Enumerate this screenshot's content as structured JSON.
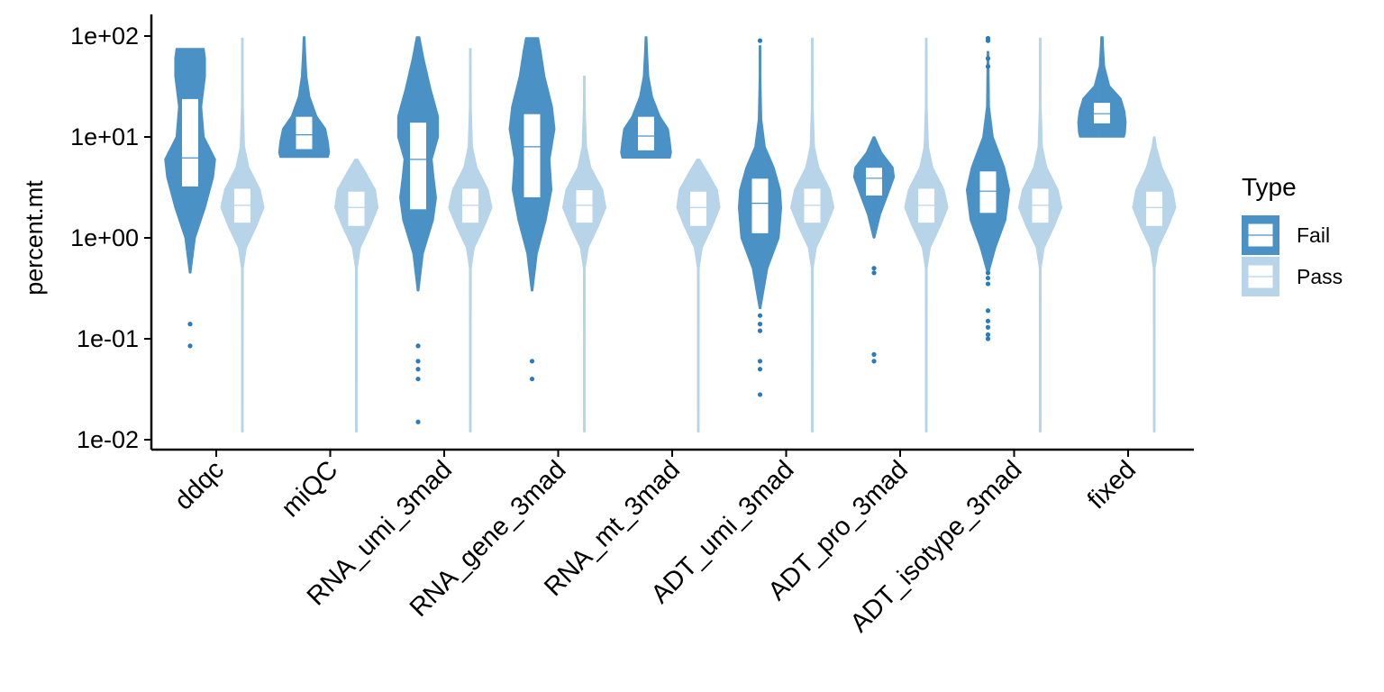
{
  "chart_data": {
    "type": "violin",
    "ylabel": "percent.mt",
    "y_scale": "log10",
    "ylim": [
      0.01,
      100
    ],
    "y_ticks": [
      {
        "value": 0.01,
        "label": "1e-02"
      },
      {
        "value": 0.1,
        "label": "1e-01"
      },
      {
        "value": 1,
        "label": "1e+00"
      },
      {
        "value": 10,
        "label": "1e+01"
      },
      {
        "value": 100,
        "label": "1e+02"
      }
    ],
    "categories": [
      "ddqc",
      "miQC",
      "RNA_umi_3mad",
      "RNA_gene_3mad",
      "RNA_mt_3mad",
      "ADT_umi_3mad",
      "ADT_pro_3mad",
      "ADT_isotype_3mad",
      "fixed"
    ],
    "legend": {
      "title": "Type",
      "position": "right",
      "entries": [
        {
          "label": "Fail",
          "color": "#4a91c6"
        },
        {
          "label": "Pass",
          "color": "#b7d4e9"
        }
      ]
    },
    "colors": {
      "fail": "#4a91c6",
      "pass": "#b7d4e9",
      "fail_point": "#2b7bba",
      "pass_point": "#a6cbe3"
    },
    "grid": false,
    "series": [
      {
        "name": "Fail",
        "groups": [
          {
            "category": "ddqc",
            "min": 0.45,
            "max": 75,
            "q1": 3.2,
            "median": 6.2,
            "q3": 24,
            "profile": [
              [
                0.45,
                0.02
              ],
              [
                1,
                0.2
              ],
              [
                2,
                0.6
              ],
              [
                4,
                0.92
              ],
              [
                6,
                1.0
              ],
              [
                10,
                0.55
              ],
              [
                20,
                0.45
              ],
              [
                40,
                0.6
              ],
              [
                60,
                0.6
              ],
              [
                75,
                0.55
              ]
            ],
            "outliers": [
              0.14,
              0.085
            ]
          },
          {
            "category": "miQC",
            "min": 6.3,
            "max": 98,
            "q1": 7.5,
            "median": 10.5,
            "q3": 16,
            "profile": [
              [
                6.3,
                0.95
              ],
              [
                7,
                1.0
              ],
              [
                9,
                0.95
              ],
              [
                12,
                0.85
              ],
              [
                16,
                0.5
              ],
              [
                25,
                0.22
              ],
              [
                40,
                0.1
              ],
              [
                70,
                0.05
              ],
              [
                98,
                0.03
              ]
            ],
            "outliers": []
          },
          {
            "category": "RNA_umi_3mad",
            "min": 0.3,
            "max": 98,
            "q1": 1.9,
            "median": 6,
            "q3": 14,
            "profile": [
              [
                0.3,
                0.02
              ],
              [
                0.7,
                0.2
              ],
              [
                1.5,
                0.6
              ],
              [
                2.5,
                0.72
              ],
              [
                4,
                0.62
              ],
              [
                6,
                0.55
              ],
              [
                10,
                0.8
              ],
              [
                16,
                0.8
              ],
              [
                30,
                0.5
              ],
              [
                60,
                0.22
              ],
              [
                98,
                0.06
              ]
            ],
            "outliers": [
              0.085,
              0.06,
              0.05,
              0.04,
              0.015
            ]
          },
          {
            "category": "RNA_gene_3mad",
            "min": 0.3,
            "max": 96,
            "q1": 2.5,
            "median": 8,
            "q3": 17,
            "profile": [
              [
                0.3,
                0.02
              ],
              [
                0.7,
                0.2
              ],
              [
                1.5,
                0.55
              ],
              [
                3,
                0.78
              ],
              [
                6,
                0.7
              ],
              [
                12,
                0.9
              ],
              [
                20,
                0.8
              ],
              [
                40,
                0.5
              ],
              [
                70,
                0.35
              ],
              [
                96,
                0.25
              ]
            ],
            "outliers": [
              0.06,
              0.04
            ]
          },
          {
            "category": "RNA_mt_3mad",
            "min": 6.2,
            "max": 98,
            "q1": 7.3,
            "median": 10.2,
            "q3": 16,
            "profile": [
              [
                6.2,
                0.95
              ],
              [
                7,
                1.0
              ],
              [
                9,
                0.95
              ],
              [
                12,
                0.88
              ],
              [
                16,
                0.55
              ],
              [
                25,
                0.25
              ],
              [
                40,
                0.1
              ],
              [
                70,
                0.05
              ],
              [
                98,
                0.03
              ]
            ],
            "outliers": []
          },
          {
            "category": "ADT_umi_3mad",
            "min": 0.2,
            "max": 80,
            "q1": 1.1,
            "median": 2.2,
            "q3": 3.9,
            "profile": [
              [
                0.2,
                0.02
              ],
              [
                0.5,
                0.3
              ],
              [
                1,
                0.75
              ],
              [
                2,
                0.85
              ],
              [
                3,
                0.8
              ],
              [
                5,
                0.55
              ],
              [
                8,
                0.2
              ],
              [
                15,
                0.06
              ],
              [
                40,
                0.02
              ],
              [
                80,
                0.01
              ]
            ],
            "outliers": [
              0.17,
              0.14,
              0.12,
              0.06,
              0.05,
              0.028,
              90
            ]
          },
          {
            "category": "ADT_pro_3mad",
            "min": 1.0,
            "max": 10,
            "q1": 2.6,
            "median": 3.9,
            "q3": 5,
            "profile": [
              [
                1.0,
                0.02
              ],
              [
                1.7,
                0.25
              ],
              [
                2.7,
                0.55
              ],
              [
                4,
                0.8
              ],
              [
                5,
                0.75
              ],
              [
                7,
                0.3
              ],
              [
                10,
                0.03
              ]
            ],
            "outliers": [
              0.5,
              0.45,
              0.07,
              0.06
            ]
          },
          {
            "category": "ADT_isotype_3mad",
            "min": 0.45,
            "max": 70,
            "q1": 1.75,
            "median": 2.9,
            "q3": 4.6,
            "profile": [
              [
                0.45,
                0.02
              ],
              [
                0.8,
                0.3
              ],
              [
                1.5,
                0.7
              ],
              [
                3,
                0.85
              ],
              [
                5,
                0.65
              ],
              [
                10,
                0.2
              ],
              [
                20,
                0.05
              ],
              [
                70,
                0.01
              ]
            ],
            "outliers": [
              0.45,
              0.4,
              0.35,
              0.19,
              0.15,
              0.13,
              0.11,
              0.1,
              95,
              90,
              60,
              50
            ]
          },
          {
            "category": "fixed",
            "min": 10,
            "max": 98,
            "q1": 13.5,
            "median": 17,
            "q3": 22,
            "profile": [
              [
                10,
                0.88
              ],
              [
                11,
                0.92
              ],
              [
                14,
                0.95
              ],
              [
                18,
                0.9
              ],
              [
                24,
                0.75
              ],
              [
                32,
                0.3
              ],
              [
                50,
                0.1
              ],
              [
                80,
                0.05
              ],
              [
                98,
                0.04
              ]
            ],
            "outliers": []
          }
        ]
      },
      {
        "name": "Pass",
        "groups": [
          {
            "category": "ddqc",
            "min": 0.012,
            "max": 95,
            "q1": 1.4,
            "median": 2.1,
            "q3": 3.1,
            "profile": [
              [
                0.012,
                0.02
              ],
              [
                0.5,
                0.03
              ],
              [
                0.8,
                0.15
              ],
              [
                1.3,
                0.55
              ],
              [
                2,
                0.85
              ],
              [
                3,
                0.7
              ],
              [
                5,
                0.25
              ],
              [
                8,
                0.08
              ],
              [
                20,
                0.03
              ],
              [
                95,
                0.02
              ]
            ],
            "outliers": []
          },
          {
            "category": "miQC",
            "min": 0.012,
            "max": 6,
            "q1": 1.3,
            "median": 2.0,
            "q3": 2.9,
            "profile": [
              [
                0.012,
                0.02
              ],
              [
                0.5,
                0.03
              ],
              [
                0.8,
                0.15
              ],
              [
                1.3,
                0.55
              ],
              [
                2,
                0.85
              ],
              [
                3,
                0.75
              ],
              [
                4.5,
                0.35
              ],
              [
                6,
                0.05
              ]
            ],
            "outliers": []
          },
          {
            "category": "RNA_umi_3mad",
            "min": 0.012,
            "max": 75,
            "q1": 1.4,
            "median": 2.1,
            "q3": 3.1,
            "profile": [
              [
                0.012,
                0.02
              ],
              [
                0.5,
                0.03
              ],
              [
                0.8,
                0.15
              ],
              [
                1.3,
                0.55
              ],
              [
                2,
                0.85
              ],
              [
                3,
                0.7
              ],
              [
                5,
                0.25
              ],
              [
                8,
                0.08
              ],
              [
                20,
                0.03
              ],
              [
                75,
                0.02
              ]
            ],
            "outliers": []
          },
          {
            "category": "RNA_gene_3mad",
            "min": 0.012,
            "max": 40,
            "q1": 1.4,
            "median": 2.1,
            "q3": 3.0,
            "profile": [
              [
                0.012,
                0.02
              ],
              [
                0.5,
                0.03
              ],
              [
                0.8,
                0.15
              ],
              [
                1.3,
                0.55
              ],
              [
                2,
                0.85
              ],
              [
                3,
                0.72
              ],
              [
                5,
                0.25
              ],
              [
                8,
                0.08
              ],
              [
                20,
                0.03
              ],
              [
                40,
                0.02
              ]
            ],
            "outliers": []
          },
          {
            "category": "RNA_mt_3mad",
            "min": 0.012,
            "max": 6,
            "q1": 1.3,
            "median": 2.0,
            "q3": 2.9,
            "profile": [
              [
                0.012,
                0.02
              ],
              [
                0.5,
                0.03
              ],
              [
                0.8,
                0.15
              ],
              [
                1.3,
                0.55
              ],
              [
                2,
                0.85
              ],
              [
                3,
                0.75
              ],
              [
                4.5,
                0.35
              ],
              [
                6,
                0.05
              ]
            ],
            "outliers": []
          },
          {
            "category": "ADT_umi_3mad",
            "min": 0.012,
            "max": 95,
            "q1": 1.4,
            "median": 2.1,
            "q3": 3.1,
            "profile": [
              [
                0.012,
                0.02
              ],
              [
                0.5,
                0.03
              ],
              [
                0.8,
                0.15
              ],
              [
                1.3,
                0.55
              ],
              [
                2,
                0.85
              ],
              [
                3,
                0.7
              ],
              [
                5,
                0.25
              ],
              [
                8,
                0.08
              ],
              [
                20,
                0.03
              ],
              [
                95,
                0.02
              ]
            ],
            "outliers": []
          },
          {
            "category": "ADT_pro_3mad",
            "min": 0.012,
            "max": 95,
            "q1": 1.4,
            "median": 2.1,
            "q3": 3.1,
            "profile": [
              [
                0.012,
                0.02
              ],
              [
                0.5,
                0.03
              ],
              [
                0.8,
                0.15
              ],
              [
                1.3,
                0.55
              ],
              [
                2,
                0.85
              ],
              [
                3,
                0.7
              ],
              [
                5,
                0.25
              ],
              [
                8,
                0.08
              ],
              [
                20,
                0.03
              ],
              [
                95,
                0.02
              ]
            ],
            "outliers": []
          },
          {
            "category": "ADT_isotype_3mad",
            "min": 0.012,
            "max": 95,
            "q1": 1.4,
            "median": 2.1,
            "q3": 3.1,
            "profile": [
              [
                0.012,
                0.02
              ],
              [
                0.5,
                0.03
              ],
              [
                0.8,
                0.15
              ],
              [
                1.3,
                0.55
              ],
              [
                2,
                0.85
              ],
              [
                3,
                0.7
              ],
              [
                5,
                0.25
              ],
              [
                8,
                0.08
              ],
              [
                20,
                0.03
              ],
              [
                95,
                0.02
              ]
            ],
            "outliers": []
          },
          {
            "category": "fixed",
            "min": 0.012,
            "max": 10,
            "q1": 1.3,
            "median": 2.0,
            "q3": 2.9,
            "profile": [
              [
                0.012,
                0.02
              ],
              [
                0.5,
                0.03
              ],
              [
                0.8,
                0.15
              ],
              [
                1.3,
                0.55
              ],
              [
                2,
                0.85
              ],
              [
                3,
                0.72
              ],
              [
                5,
                0.3
              ],
              [
                8,
                0.08
              ],
              [
                10,
                0.02
              ]
            ],
            "outliers": []
          }
        ]
      }
    ]
  }
}
